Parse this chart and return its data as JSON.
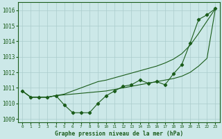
{
  "background_color": "#cce8e8",
  "grid_color": "#aacccc",
  "line_color": "#1a5c1a",
  "title": "Graphe pression niveau de la mer (hPa)",
  "xlim": [
    -0.5,
    23.5
  ],
  "ylim": [
    1008.8,
    1016.5
  ],
  "yticks": [
    1009,
    1010,
    1011,
    1012,
    1013,
    1014,
    1015,
    1016
  ],
  "xticks": [
    0,
    1,
    2,
    3,
    4,
    5,
    6,
    7,
    8,
    9,
    10,
    11,
    12,
    13,
    14,
    15,
    16,
    17,
    18,
    19,
    20,
    21,
    22,
    23
  ],
  "series1": [
    1010.8,
    1010.4,
    1010.4,
    1010.4,
    1010.5,
    1009.9,
    1009.4,
    1009.4,
    1009.4,
    1010.0,
    1010.5,
    1010.8,
    1011.1,
    1011.2,
    1011.5,
    1011.3,
    1011.4,
    1011.2,
    1011.9,
    1012.5,
    1013.9,
    1015.4,
    1015.7,
    1016.1
  ],
  "series2": [
    1010.8,
    1010.4,
    1010.4,
    1010.4,
    1010.5,
    1010.55,
    1010.6,
    1010.65,
    1010.7,
    1010.75,
    1010.8,
    1010.9,
    1011.0,
    1011.1,
    1011.2,
    1011.3,
    1011.4,
    1011.5,
    1011.6,
    1011.75,
    1012.0,
    1012.4,
    1012.9,
    1016.1
  ],
  "series3": [
    1010.8,
    1010.4,
    1010.4,
    1010.4,
    1010.5,
    1010.6,
    1010.8,
    1011.0,
    1011.2,
    1011.4,
    1011.5,
    1011.65,
    1011.8,
    1011.95,
    1012.1,
    1012.25,
    1012.4,
    1012.6,
    1012.85,
    1013.2,
    1013.75,
    1014.5,
    1015.3,
    1016.1
  ],
  "figsize": [
    3.2,
    2.0
  ],
  "dpi": 100,
  "ylabel_fontsize": 5.5,
  "xlabel_fontsize": 5.8,
  "ytick_fontsize": 5.5,
  "xtick_fontsize": 4.3,
  "line_width": 0.8,
  "marker": "D",
  "marker_size": 2.2
}
